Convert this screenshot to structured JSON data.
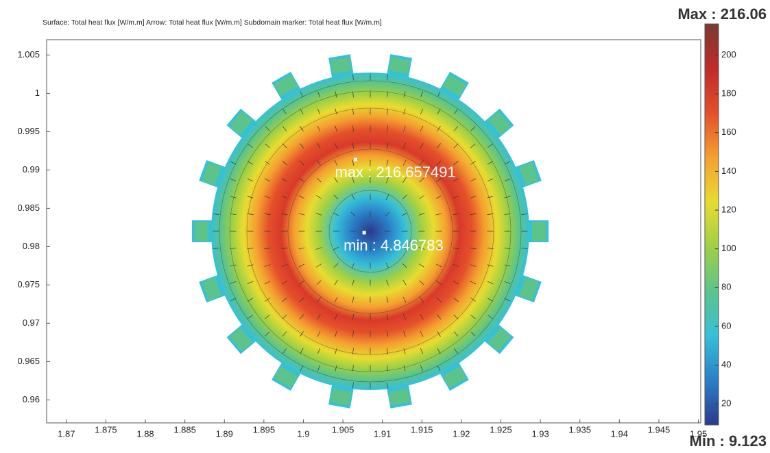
{
  "chart_data": {
    "type": "contour",
    "title": "Surface: Total heat flux [W/m.m]  Arrow: Total heat flux [W/m.m]  Subdomain marker: Total heat flux [W/m.m]",
    "xlim": [
      1.8675,
      1.9503
    ],
    "xticks": [
      1.87,
      1.875,
      1.88,
      1.885,
      1.89,
      1.895,
      1.9,
      1.905,
      1.91,
      1.915,
      1.92,
      1.925,
      1.93,
      1.935,
      1.94,
      1.945,
      1.95
    ],
    "ylim": [
      0.957,
      1.007
    ],
    "yticks": [
      1.005,
      1,
      0.995,
      0.99,
      0.985,
      0.98,
      0.975,
      0.97,
      0.965,
      0.96
    ],
    "clim": [
      9.123,
      216.06
    ],
    "cticks": [
      20,
      40,
      60,
      80,
      100,
      120,
      140,
      160,
      180,
      200
    ],
    "colormap": [
      "#2b3a8c",
      "#2a7fc8",
      "#36c0d8",
      "#5cc48a",
      "#9ed045",
      "#e8dc30",
      "#f4a030",
      "#e4502a",
      "#c02a2a",
      "#7a3a30"
    ],
    "max_label": "Max : 216.06",
    "min_label": "Min : 9.123",
    "annotations": [
      {
        "text": "max : 216.657491",
        "x": 1.9066,
        "y": 0.99136
      },
      {
        "text": "min : 4.846783",
        "x": 1.9077,
        "y": 0.98182
      }
    ]
  }
}
